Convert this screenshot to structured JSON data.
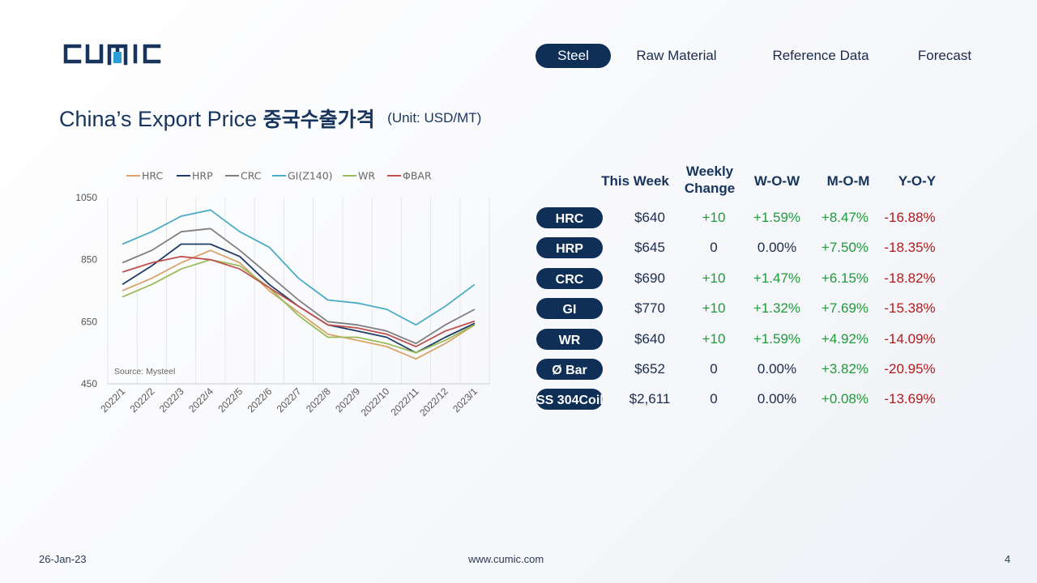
{
  "brand": {
    "logo_text": "CUMIC"
  },
  "nav": {
    "items": [
      "Steel",
      "Raw Material",
      "Reference Data",
      "Forecast"
    ],
    "active": "Steel"
  },
  "title": {
    "main": "China’s Export Price",
    "korean": "중국수출가격",
    "unit": "(Unit: USD/MT)"
  },
  "table": {
    "headers": {
      "this_week": "This Week",
      "weekly_change": "Weekly Change",
      "wow": "W-O-W",
      "mom": "M-O-M",
      "yoy": "Y-O-Y"
    },
    "rows": [
      {
        "product": "HRC",
        "price": "$640",
        "change": "+10",
        "wow": "+1.59%",
        "mom": "+8.47%",
        "yoy": "-16.88%"
      },
      {
        "product": "HRP",
        "price": "$645",
        "change": "0",
        "wow": "0.00%",
        "mom": "+7.50%",
        "yoy": "-18.35%"
      },
      {
        "product": "CRC",
        "price": "$690",
        "change": "+10",
        "wow": "+1.47%",
        "mom": "+6.15%",
        "yoy": "-18.82%"
      },
      {
        "product": "GI",
        "price": "$770",
        "change": "+10",
        "wow": "+1.32%",
        "mom": "+7.69%",
        "yoy": "-15.38%"
      },
      {
        "product": "WR",
        "price": "$640",
        "change": "+10",
        "wow": "+1.59%",
        "mom": "+4.92%",
        "yoy": "-14.09%"
      },
      {
        "product": "Ø Bar",
        "price": "$652",
        "change": "0",
        "wow": "0.00%",
        "mom": "+3.82%",
        "yoy": "-20.95%"
      },
      {
        "product": "SS 304Coil",
        "price": "$2,611",
        "change": "0",
        "wow": "0.00%",
        "mom": "+0.08%",
        "yoy": "-13.69%"
      }
    ]
  },
  "colors": {
    "positive": "#1e9b3a",
    "negative": "#b01c1c",
    "neutral": "#1b2b4b",
    "pill": "#0f2f57"
  },
  "footer": {
    "date": "26-Jan-23",
    "url": "www.cumic.com",
    "page": "4"
  },
  "chart_data": {
    "type": "line",
    "x": [
      "2022/1",
      "2022/2",
      "2022/3",
      "2022/4",
      "2022/5",
      "2022/6",
      "2022/7",
      "2022/8",
      "2022/9",
      "2022/10",
      "2022/11",
      "2022/12",
      "2023/1"
    ],
    "ylim": [
      450,
      1050
    ],
    "yticks": [
      450,
      650,
      850,
      1050
    ],
    "grid": "vertical",
    "legend_position": "top",
    "source": "Source: Mysteel",
    "series": [
      {
        "name": "HRC",
        "color": "#d9a36b",
        "values": [
          750,
          790,
          840,
          880,
          840,
          750,
          680,
          610,
          590,
          570,
          530,
          580,
          640
        ]
      },
      {
        "name": "HRP",
        "color": "#1f3b66",
        "values": [
          770,
          830,
          900,
          900,
          860,
          770,
          700,
          640,
          620,
          600,
          550,
          600,
          645
        ]
      },
      {
        "name": "CRC",
        "color": "#7f7f7f",
        "values": [
          840,
          880,
          940,
          950,
          880,
          800,
          720,
          650,
          640,
          620,
          580,
          640,
          690
        ]
      },
      {
        "name": "GI(Z140)",
        "color": "#4bacc6",
        "values": [
          900,
          940,
          990,
          1010,
          940,
          890,
          790,
          720,
          710,
          690,
          640,
          700,
          770
        ]
      },
      {
        "name": "WR",
        "color": "#9bbb59",
        "values": [
          730,
          770,
          820,
          850,
          830,
          760,
          670,
          600,
          600,
          580,
          550,
          590,
          640
        ]
      },
      {
        "name": "ΦBAR",
        "color": "#c0504d",
        "values": [
          810,
          840,
          860,
          850,
          820,
          760,
          700,
          640,
          630,
          610,
          570,
          620,
          652
        ]
      }
    ]
  }
}
